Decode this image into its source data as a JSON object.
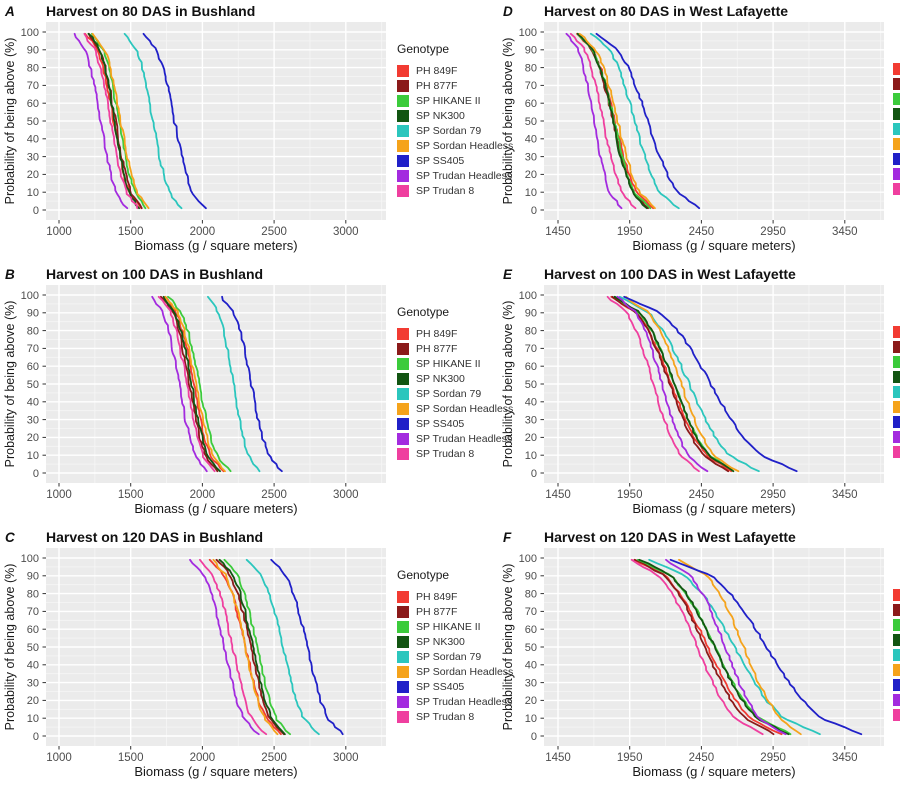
{
  "page": {
    "background": "#ffffff",
    "panel_background": "#EBEBEB",
    "gridline_major": "#FFFFFF",
    "gridline_minor": "#F6F6F6",
    "tick_color": "#333333",
    "tick_label_color": "#4D4D4D"
  },
  "legend": {
    "title": "Genotype",
    "items": [
      {
        "label": "PH 849F",
        "color": "#F23B32"
      },
      {
        "label": "PH 877F",
        "color": "#8B1A1A"
      },
      {
        "label": "SP HIKANE II",
        "color": "#3BCB3B"
      },
      {
        "label": "SP NK300",
        "color": "#125512"
      },
      {
        "label": "SP Sordan 79",
        "color": "#2BC6BD"
      },
      {
        "label": "SP Sordan Headless",
        "color": "#F5A31B"
      },
      {
        "label": "SP SS405",
        "color": "#2020C8"
      },
      {
        "label": "SP Trudan Headless",
        "color": "#A32BDF"
      },
      {
        "label": "SP Trudan 8",
        "color": "#EF3F9F"
      }
    ]
  },
  "axes": {
    "x_label": "Biomass (g / square meters)",
    "y_label": "Probability of being above (%)",
    "y_ticks": [
      0,
      10,
      20,
      30,
      40,
      50,
      60,
      70,
      80,
      90,
      100
    ],
    "y_range": [
      0,
      100
    ]
  },
  "chart_data": [
    {
      "id": "A",
      "type": "line",
      "title": "Harvest on 80 DAS in Bushland",
      "grid_pos": {
        "col": 0,
        "row": 0
      },
      "x_ticks": [
        1000,
        1500,
        2000,
        2500,
        3000
      ],
      "x_domain": [
        909,
        3279
      ],
      "probability_levels": [
        100,
        90,
        80,
        70,
        60,
        50,
        40,
        30,
        20,
        10,
        0
      ],
      "series": [
        {
          "name": "PH 849F",
          "x": [
            1180,
            1270,
            1308,
            1335,
            1358,
            1380,
            1402,
            1425,
            1452,
            1490,
            1580
          ]
        },
        {
          "name": "PH 877F",
          "x": [
            1195,
            1284,
            1321,
            1348,
            1371,
            1393,
            1414,
            1437,
            1464,
            1501,
            1590
          ]
        },
        {
          "name": "SP HIKANE II",
          "x": [
            1220,
            1309,
            1346,
            1373,
            1396,
            1418,
            1439,
            1462,
            1489,
            1526,
            1615
          ]
        },
        {
          "name": "SP NK300",
          "x": [
            1205,
            1286,
            1320,
            1345,
            1366,
            1385,
            1404,
            1425,
            1450,
            1484,
            1565
          ]
        },
        {
          "name": "SP Sordan 79",
          "x": [
            1450,
            1542,
            1581,
            1609,
            1633,
            1655,
            1677,
            1701,
            1729,
            1768,
            1860
          ]
        },
        {
          "name": "SP Sordan Headless",
          "x": [
            1230,
            1320,
            1358,
            1385,
            1408,
            1430,
            1452,
            1475,
            1502,
            1540,
            1630
          ]
        },
        {
          "name": "SP SS405",
          "x": [
            1580,
            1681,
            1724,
            1755,
            1781,
            1805,
            1829,
            1855,
            1886,
            1929,
            2030
          ]
        },
        {
          "name": "SP Trudan Headless",
          "x": [
            1100,
            1185,
            1220,
            1245,
            1270,
            1290,
            1310,
            1335,
            1360,
            1395,
            1480
          ]
        },
        {
          "name": "SP Trudan 8",
          "x": [
            1160,
            1250,
            1288,
            1315,
            1338,
            1360,
            1382,
            1405,
            1432,
            1470,
            1560
          ]
        }
      ]
    },
    {
      "id": "B",
      "type": "line",
      "title": "Harvest on 100 DAS in Bushland",
      "grid_pos": {
        "col": 0,
        "row": 1
      },
      "x_ticks": [
        1000,
        1500,
        2000,
        2500,
        3000
      ],
      "x_domain": [
        909,
        3279
      ],
      "probability_levels": [
        100,
        90,
        80,
        70,
        60,
        50,
        40,
        30,
        20,
        10,
        0
      ],
      "series": [
        {
          "name": "PH 849F",
          "x": [
            1725,
            1821,
            1861,
            1890,
            1915,
            1938,
            1960,
            1985,
            2014,
            2054,
            2150
          ]
        },
        {
          "name": "PH 877F",
          "x": [
            1705,
            1796,
            1835,
            1862,
            1886,
            1908,
            1929,
            1953,
            1980,
            2019,
            2110
          ]
        },
        {
          "name": "SP HIKANE II",
          "x": [
            1755,
            1855,
            1897,
            1928,
            1953,
            1978,
            2002,
            2027,
            2058,
            2100,
            2200
          ]
        },
        {
          "name": "SP NK300",
          "x": [
            1715,
            1808,
            1848,
            1876,
            1900,
            1923,
            1945,
            1969,
            1997,
            2037,
            2130
          ]
        },
        {
          "name": "SP Sordan 79",
          "x": [
            2030,
            2113,
            2148,
            2174,
            2195,
            2215,
            2235,
            2256,
            2282,
            2317,
            2400
          ]
        },
        {
          "name": "SP Sordan Headless",
          "x": [
            1735,
            1833,
            1874,
            1904,
            1929,
            1953,
            1976,
            2001,
            2031,
            2072,
            2170
          ]
        },
        {
          "name": "SP SS405",
          "x": [
            2120,
            2219,
            2261,
            2291,
            2316,
            2340,
            2364,
            2389,
            2419,
            2461,
            2560
          ]
        },
        {
          "name": "SP Trudan Headless",
          "x": [
            1635,
            1726,
            1765,
            1792,
            1816,
            1838,
            1859,
            1883,
            1910,
            1949,
            2040
          ]
        },
        {
          "name": "SP Trudan 8",
          "x": [
            1690,
            1780,
            1818,
            1845,
            1868,
            1890,
            1912,
            1935,
            1962,
            2000,
            2090
          ]
        }
      ]
    },
    {
      "id": "C",
      "type": "line",
      "title": "Harvest on 120 DAS in Bushland",
      "grid_pos": {
        "col": 0,
        "row": 2
      },
      "x_ticks": [
        1000,
        1500,
        2000,
        2500,
        3000
      ],
      "x_domain": [
        909,
        3279
      ],
      "probability_levels": [
        100,
        90,
        80,
        70,
        60,
        50,
        40,
        30,
        20,
        10,
        0
      ],
      "series": [
        {
          "name": "PH 849F",
          "x": [
            2040,
            2157,
            2206,
            2242,
            2272,
            2300,
            2328,
            2358,
            2394,
            2443,
            2560
          ]
        },
        {
          "name": "PH 877F",
          "x": [
            2090,
            2200,
            2247,
            2280,
            2309,
            2335,
            2361,
            2390,
            2423,
            2470,
            2580
          ]
        },
        {
          "name": "SP HIKANE II",
          "x": [
            2140,
            2248,
            2294,
            2326,
            2354,
            2380,
            2406,
            2434,
            2466,
            2512,
            2620
          ]
        },
        {
          "name": "SP NK300",
          "x": [
            2110,
            2218,
            2264,
            2296,
            2324,
            2350,
            2376,
            2404,
            2436,
            2482,
            2590
          ]
        },
        {
          "name": "SP Sordan 79",
          "x": [
            2300,
            2417,
            2466,
            2502,
            2532,
            2560,
            2588,
            2618,
            2654,
            2703,
            2820
          ]
        },
        {
          "name": "SP Sordan Headless",
          "x": [
            2060,
            2168,
            2214,
            2246,
            2274,
            2300,
            2326,
            2354,
            2386,
            2432,
            2540
          ]
        },
        {
          "name": "SP SS405",
          "x": [
            2470,
            2587,
            2636,
            2672,
            2702,
            2730,
            2758,
            2788,
            2824,
            2873,
            2990
          ]
        },
        {
          "name": "SP Trudan Headless",
          "x": [
            1900,
            2013,
            2060,
            2094,
            2123,
            2150,
            2177,
            2206,
            2240,
            2288,
            2400
          ]
        },
        {
          "name": "SP Trudan 8",
          "x": [
            1970,
            2078,
            2124,
            2156,
            2184,
            2210,
            2236,
            2264,
            2296,
            2342,
            2450
          ]
        }
      ]
    },
    {
      "id": "D",
      "type": "line",
      "title": "Harvest on 80 DAS in West Lafayette",
      "grid_pos": {
        "col": 1,
        "row": 0
      },
      "x_ticks": [
        1450,
        1950,
        2450,
        2950,
        3450
      ],
      "x_domain": [
        1352,
        3722
      ],
      "probability_levels": [
        100,
        90,
        80,
        70,
        60,
        50,
        40,
        30,
        20,
        10,
        0
      ],
      "series": [
        {
          "name": "PH 849F",
          "x": [
            1570,
            1694,
            1746,
            1783,
            1815,
            1845,
            1875,
            1907,
            1944,
            1996,
            2120
          ]
        },
        {
          "name": "PH 877F",
          "x": [
            1575,
            1691,
            1740,
            1775,
            1805,
            1833,
            1860,
            1890,
            1925,
            1974,
            2090
          ]
        },
        {
          "name": "SP HIKANE II",
          "x": [
            1580,
            1697,
            1746,
            1782,
            1812,
            1840,
            1868,
            1898,
            1934,
            1983,
            2100
          ]
        },
        {
          "name": "SP NK300",
          "x": [
            1585,
            1696,
            1743,
            1777,
            1806,
            1833,
            1859,
            1888,
            1922,
            1969,
            2080
          ]
        },
        {
          "name": "SP Sordan 79",
          "x": [
            1670,
            1812,
            1872,
            1914,
            1951,
            1985,
            2019,
            2056,
            2098,
            2158,
            2300
          ]
        },
        {
          "name": "SP Sordan Headless",
          "x": [
            1590,
            1714,
            1766,
            1803,
            1835,
            1865,
            1895,
            1927,
            1964,
            2016,
            2140
          ]
        },
        {
          "name": "SP SS405",
          "x": [
            1700,
            1869,
            1940,
            1991,
            2035,
            2075,
            2115,
            2159,
            2210,
            2281,
            2450
          ]
        },
        {
          "name": "SP Trudan Headless",
          "x": [
            1500,
            1590,
            1628,
            1655,
            1678,
            1700,
            1722,
            1745,
            1772,
            1810,
            1900
          ]
        },
        {
          "name": "SP Trudan 8",
          "x": [
            1530,
            1636,
            1680,
            1712,
            1740,
            1765,
            1790,
            1818,
            1850,
            1894,
            2000
          ]
        }
      ]
    },
    {
      "id": "E",
      "type": "line",
      "title": "Harvest on 100 DAS in West Lafayette",
      "grid_pos": {
        "col": 1,
        "row": 1
      },
      "x_ticks": [
        1450,
        1950,
        2450,
        2950,
        3450
      ],
      "x_domain": [
        1352,
        3722
      ],
      "probability_levels": [
        100,
        90,
        80,
        70,
        60,
        50,
        40,
        30,
        20,
        10,
        0
      ],
      "series": [
        {
          "name": "PH 849F",
          "x": [
            1800,
            1998,
            2082,
            2141,
            2193,
            2240,
            2287,
            2339,
            2398,
            2482,
            2680
          ]
        },
        {
          "name": "PH 877F",
          "x": [
            1810,
            1999,
            2079,
            2136,
            2185,
            2230,
            2275,
            2324,
            2381,
            2461,
            2650
          ]
        },
        {
          "name": "SP HIKANE II",
          "x": [
            1820,
            2018,
            2102,
            2161,
            2213,
            2260,
            2307,
            2359,
            2418,
            2502,
            2700
          ]
        },
        {
          "name": "SP NK300",
          "x": [
            1830,
            2024,
            2105,
            2164,
            2214,
            2260,
            2306,
            2356,
            2415,
            2497,
            2690
          ]
        },
        {
          "name": "SP Sordan 79",
          "x": [
            1860,
            2087,
            2183,
            2252,
            2310,
            2365,
            2420,
            2478,
            2547,
            2643,
            2870
          ]
        },
        {
          "name": "SP Sordan Headless",
          "x": [
            1900,
            2085,
            2162,
            2218,
            2266,
            2310,
            2354,
            2402,
            2458,
            2536,
            2720
          ]
        },
        {
          "name": "SP SS405",
          "x": [
            1880,
            2166,
            2286,
            2373,
            2446,
            2515,
            2584,
            2657,
            2744,
            2864,
            3150
          ]
        },
        {
          "name": "SP Trudan Headless",
          "x": [
            1850,
            1996,
            2058,
            2102,
            2140,
            2175,
            2210,
            2248,
            2292,
            2354,
            2500
          ]
        },
        {
          "name": "SP Trudan 8",
          "x": [
            1780,
            1931,
            1994,
            2040,
            2079,
            2115,
            2151,
            2190,
            2236,
            2299,
            2450
          ]
        }
      ]
    },
    {
      "id": "F",
      "type": "line",
      "title": "Harvest on 120 DAS in West Lafayette",
      "grid_pos": {
        "col": 1,
        "row": 2
      },
      "x_ticks": [
        1450,
        1950,
        2450,
        2950,
        3450
      ],
      "x_domain": [
        1352,
        3722
      ],
      "probability_levels": [
        100,
        90,
        80,
        70,
        60,
        50,
        40,
        30,
        20,
        10,
        0
      ],
      "series": [
        {
          "name": "PH 849F",
          "x": [
            1960,
            2201,
            2302,
            2375,
            2437,
            2495,
            2553,
            2615,
            2688,
            2789,
            3030
          ]
        },
        {
          "name": "PH 877F",
          "x": [
            1970,
            2197,
            2293,
            2362,
            2420,
            2475,
            2530,
            2588,
            2657,
            2753,
            2980
          ]
        },
        {
          "name": "SP HIKANE II",
          "x": [
            1990,
            2240,
            2345,
            2421,
            2485,
            2545,
            2605,
            2669,
            2745,
            2850,
            3100
          ]
        },
        {
          "name": "SP NK300",
          "x": [
            2000,
            2243,
            2346,
            2419,
            2482,
            2540,
            2598,
            2661,
            2734,
            2837,
            3080
          ]
        },
        {
          "name": "SP Sordan 79",
          "x": [
            2060,
            2339,
            2457,
            2541,
            2613,
            2680,
            2747,
            2819,
            2903,
            3021,
            3300
          ]
        },
        {
          "name": "SP Sordan Headless",
          "x": [
            2280,
            2489,
            2578,
            2641,
            2695,
            2745,
            2795,
            2849,
            2912,
            3001,
            3150
          ]
        },
        {
          "name": "SP SS405",
          "x": [
            2210,
            2523,
            2655,
            2749,
            2830,
            2905,
            2980,
            3061,
            3155,
            3287,
            3600
          ]
        },
        {
          "name": "SP Trudan Headless",
          "x": [
            2180,
            2376,
            2458,
            2518,
            2568,
            2615,
            2662,
            2712,
            2772,
            2854,
            3050
          ]
        },
        {
          "name": "SP Trudan 8",
          "x": [
            1940,
            2156,
            2247,
            2313,
            2368,
            2420,
            2472,
            2528,
            2593,
            2684,
            2900
          ]
        }
      ]
    }
  ]
}
